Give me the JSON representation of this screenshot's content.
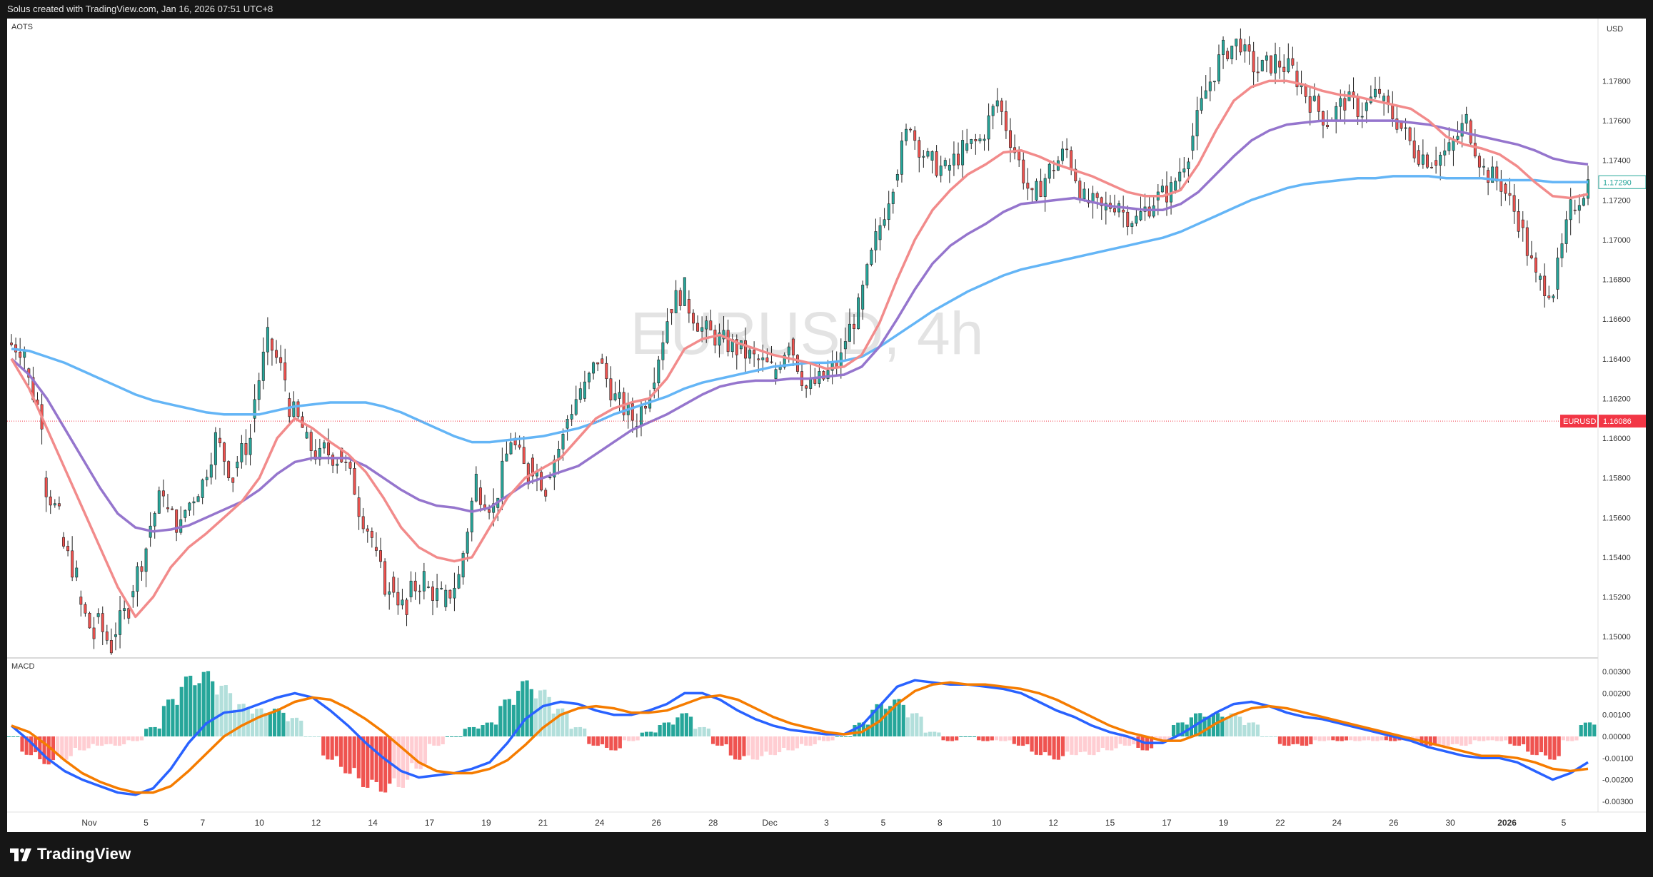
{
  "topbar": {
    "credit": "Solus created with TradingView.com, Jan 16, 2026 07:51 UTC+8"
  },
  "brand": {
    "logo_text": "TradingView"
  },
  "pane_labels": {
    "main": "AOTS",
    "macd": "MACD"
  },
  "watermark": {
    "text": "EURUSD, 4h"
  },
  "colors": {
    "up": "#26a69a",
    "down": "#ef5350",
    "ma_fast": "#f28b8b",
    "ma_mid": "#9575cd",
    "ma_slow": "#64b5f6",
    "macd_line": "#2962ff",
    "signal_line": "#f57c00",
    "last_price_tag": "#f23645",
    "current_tag": "#26a69a"
  },
  "price_axis": {
    "currency": "USD",
    "ticks": [
      "1.17800",
      "1.17600",
      "1.17400",
      "1.17200",
      "1.17000",
      "1.16800",
      "1.16600",
      "1.16400",
      "1.16200",
      "1.16000",
      "1.15800",
      "1.15600",
      "1.15400",
      "1.15200",
      "1.15000"
    ],
    "current_price": "1.17290",
    "last_price_symbol": "EURUSD",
    "last_price_value": "1.16086"
  },
  "macd_axis": {
    "ticks": [
      "0.00300",
      "0.00200",
      "0.00100",
      "0.00000",
      "-0.00100",
      "-0.00200",
      "-0.00300"
    ]
  },
  "time_axis": {
    "labels": [
      {
        "t": "Nov",
        "bold": false
      },
      {
        "t": "5",
        "bold": false
      },
      {
        "t": "7",
        "bold": false
      },
      {
        "t": "10",
        "bold": false
      },
      {
        "t": "12",
        "bold": false
      },
      {
        "t": "14",
        "bold": false
      },
      {
        "t": "17",
        "bold": false
      },
      {
        "t": "19",
        "bold": false
      },
      {
        "t": "21",
        "bold": false
      },
      {
        "t": "24",
        "bold": false
      },
      {
        "t": "26",
        "bold": false
      },
      {
        "t": "28",
        "bold": false
      },
      {
        "t": "Dec",
        "bold": false
      },
      {
        "t": "3",
        "bold": false
      },
      {
        "t": "5",
        "bold": false
      },
      {
        "t": "8",
        "bold": false
      },
      {
        "t": "10",
        "bold": false
      },
      {
        "t": "12",
        "bold": false
      },
      {
        "t": "15",
        "bold": false
      },
      {
        "t": "17",
        "bold": false
      },
      {
        "t": "19",
        "bold": false
      },
      {
        "t": "22",
        "bold": false
      },
      {
        "t": "24",
        "bold": false
      },
      {
        "t": "26",
        "bold": false
      },
      {
        "t": "30",
        "bold": false
      },
      {
        "t": "2026",
        "bold": true
      },
      {
        "t": "5",
        "bold": false
      }
    ]
  },
  "chart_data": {
    "type": "candlestick",
    "symbol": "EURUSD",
    "ylim": [
      1.149,
      1.181
    ],
    "macd_ylim": [
      -0.0035,
      0.0035
    ],
    "anchors": [
      {
        "o": 1.1648,
        "c": 1.1645
      },
      {
        "o": 1.1635,
        "c": 1.161
      },
      {
        "o": 1.158,
        "c": 1.156
      },
      {
        "o": 1.155,
        "c": 1.153
      },
      {
        "o": 1.152,
        "c": 1.15
      },
      {
        "o": 1.151,
        "c": 1.1495
      },
      {
        "o": 1.15,
        "c": 1.1515
      },
      {
        "o": 1.152,
        "c": 1.1545
      },
      {
        "o": 1.155,
        "c": 1.1575
      },
      {
        "o": 1.1565,
        "c": 1.1555
      },
      {
        "o": 1.156,
        "c": 1.1575
      },
      {
        "o": 1.157,
        "c": 1.16
      },
      {
        "o": 1.16,
        "c": 1.158
      },
      {
        "o": 1.1585,
        "c": 1.16
      },
      {
        "o": 1.161,
        "c": 1.165
      },
      {
        "o": 1.165,
        "c": 1.163
      },
      {
        "o": 1.162,
        "c": 1.1605
      },
      {
        "o": 1.16,
        "c": 1.159
      },
      {
        "o": 1.1595,
        "c": 1.159
      },
      {
        "o": 1.1595,
        "c": 1.1575
      },
      {
        "o": 1.157,
        "c": 1.155
      },
      {
        "o": 1.1545,
        "c": 1.152
      },
      {
        "o": 1.153,
        "c": 1.151
      },
      {
        "o": 1.152,
        "c": 1.153
      },
      {
        "o": 1.1525,
        "c": 1.152
      },
      {
        "o": 1.1515,
        "c": 1.153
      },
      {
        "o": 1.153,
        "c": 1.158
      },
      {
        "o": 1.1575,
        "c": 1.1565
      },
      {
        "o": 1.1565,
        "c": 1.16
      },
      {
        "o": 1.16,
        "c": 1.158
      },
      {
        "o": 1.159,
        "c": 1.1575
      },
      {
        "o": 1.158,
        "c": 1.16
      },
      {
        "o": 1.1605,
        "c": 1.1625
      },
      {
        "o": 1.162,
        "c": 1.164
      },
      {
        "o": 1.164,
        "c": 1.162
      },
      {
        "o": 1.162,
        "c": 1.161
      },
      {
        "o": 1.1605,
        "c": 1.1625
      },
      {
        "o": 1.1625,
        "c": 1.166
      },
      {
        "o": 1.1665,
        "c": 1.1675
      },
      {
        "o": 1.167,
        "c": 1.1655
      },
      {
        "o": 1.1655,
        "c": 1.165
      },
      {
        "o": 1.165,
        "c": 1.1645
      },
      {
        "o": 1.1645,
        "c": 1.164
      },
      {
        "o": 1.164,
        "c": 1.1635
      },
      {
        "o": 1.163,
        "c": 1.165
      },
      {
        "o": 1.165,
        "c": 1.1625
      },
      {
        "o": 1.1625,
        "c": 1.163
      },
      {
        "o": 1.163,
        "c": 1.164
      },
      {
        "o": 1.1645,
        "c": 1.1665
      },
      {
        "o": 1.1665,
        "c": 1.17
      },
      {
        "o": 1.17,
        "c": 1.173
      },
      {
        "o": 1.173,
        "c": 1.176
      },
      {
        "o": 1.1755,
        "c": 1.174
      },
      {
        "o": 1.174,
        "c": 1.1735
      },
      {
        "o": 1.1735,
        "c": 1.1745
      },
      {
        "o": 1.1745,
        "c": 1.175
      },
      {
        "o": 1.175,
        "c": 1.177
      },
      {
        "o": 1.177,
        "c": 1.1745
      },
      {
        "o": 1.1745,
        "c": 1.172
      },
      {
        "o": 1.172,
        "c": 1.1735
      },
      {
        "o": 1.1735,
        "c": 1.1745
      },
      {
        "o": 1.1745,
        "c": 1.172
      },
      {
        "o": 1.172,
        "c": 1.1715
      },
      {
        "o": 1.1715,
        "c": 1.172
      },
      {
        "o": 1.1715,
        "c": 1.171
      },
      {
        "o": 1.171,
        "c": 1.172
      },
      {
        "o": 1.172,
        "c": 1.1725
      },
      {
        "o": 1.1725,
        "c": 1.1745
      },
      {
        "o": 1.1745,
        "c": 1.1775
      },
      {
        "o": 1.1775,
        "c": 1.1795
      },
      {
        "o": 1.1795,
        "c": 1.18
      },
      {
        "o": 1.1795,
        "c": 1.1785
      },
      {
        "o": 1.1785,
        "c": 1.179
      },
      {
        "o": 1.179,
        "c": 1.1785
      },
      {
        "o": 1.1785,
        "c": 1.177
      },
      {
        "o": 1.177,
        "c": 1.176
      },
      {
        "o": 1.176,
        "c": 1.177
      },
      {
        "o": 1.177,
        "c": 1.1765
      },
      {
        "o": 1.1765,
        "c": 1.1775
      },
      {
        "o": 1.177,
        "c": 1.176
      },
      {
        "o": 1.176,
        "c": 1.1745
      },
      {
        "o": 1.1745,
        "c": 1.174
      },
      {
        "o": 1.174,
        "c": 1.1745
      },
      {
        "o": 1.1745,
        "c": 1.176
      },
      {
        "o": 1.176,
        "c": 1.1735
      },
      {
        "o": 1.1735,
        "c": 1.1728
      },
      {
        "o": 1.1728,
        "c": 1.171
      },
      {
        "o": 1.171,
        "c": 1.168
      },
      {
        "o": 1.168,
        "c": 1.1675
      },
      {
        "o": 1.1675,
        "c": 1.1715
      },
      {
        "o": 1.1715,
        "c": 1.1729
      }
    ],
    "indicator_points": {
      "ma_fast": [
        1.164,
        1.1625,
        1.1605,
        1.1585,
        1.1565,
        1.1545,
        1.1525,
        1.151,
        1.152,
        1.1535,
        1.1545,
        1.1552,
        1.156,
        1.1568,
        1.158,
        1.16,
        1.161,
        1.1605,
        1.1598,
        1.1592,
        1.1583,
        1.157,
        1.1555,
        1.1545,
        1.154,
        1.1538,
        1.154,
        1.1555,
        1.157,
        1.158,
        1.1585,
        1.159,
        1.16,
        1.161,
        1.1615,
        1.1618,
        1.162,
        1.163,
        1.1645,
        1.165,
        1.1652,
        1.1648,
        1.1645,
        1.1642,
        1.164,
        1.1638,
        1.1635,
        1.1636,
        1.1642,
        1.1658,
        1.168,
        1.17,
        1.1715,
        1.1725,
        1.1733,
        1.1738,
        1.1744,
        1.1745,
        1.1742,
        1.1738,
        1.1735,
        1.1732,
        1.1728,
        1.1724,
        1.1722,
        1.1722,
        1.1725,
        1.1738,
        1.1755,
        1.177,
        1.1777,
        1.178,
        1.178,
        1.1778,
        1.1775,
        1.1773,
        1.1772,
        1.177,
        1.1768,
        1.1766,
        1.176,
        1.1752,
        1.1748,
        1.1746,
        1.1743,
        1.1737,
        1.1729,
        1.1722,
        1.1721,
        1.1723
      ],
      "ma_mid": [
        1.164,
        1.1632,
        1.162,
        1.1605,
        1.159,
        1.1575,
        1.1562,
        1.1555,
        1.1553,
        1.1554,
        1.1556,
        1.156,
        1.1564,
        1.1568,
        1.1574,
        1.1582,
        1.1588,
        1.159,
        1.159,
        1.159,
        1.1586,
        1.158,
        1.1574,
        1.1569,
        1.1566,
        1.1565,
        1.1563,
        1.1565,
        1.1571,
        1.1577,
        1.158,
        1.1583,
        1.1586,
        1.1592,
        1.1598,
        1.1604,
        1.1608,
        1.1612,
        1.1617,
        1.1622,
        1.1626,
        1.1628,
        1.1629,
        1.1629,
        1.163,
        1.163,
        1.1631,
        1.1632,
        1.1636,
        1.1646,
        1.166,
        1.1675,
        1.1688,
        1.1697,
        1.1703,
        1.1708,
        1.1714,
        1.1718,
        1.1719,
        1.172,
        1.1721,
        1.1719,
        1.1717,
        1.1716,
        1.1715,
        1.1715,
        1.1718,
        1.1724,
        1.1733,
        1.1742,
        1.175,
        1.1755,
        1.1758,
        1.1759,
        1.176,
        1.176,
        1.176,
        1.176,
        1.176,
        1.1759,
        1.1758,
        1.1756,
        1.1754,
        1.1752,
        1.175,
        1.1748,
        1.1745,
        1.1741,
        1.1739,
        1.1738
      ],
      "ma_slow": [
        1.1645,
        1.1644,
        1.1641,
        1.1638,
        1.1634,
        1.163,
        1.1626,
        1.1622,
        1.1619,
        1.1617,
        1.1615,
        1.1613,
        1.1612,
        1.1612,
        1.1612,
        1.1614,
        1.1616,
        1.1617,
        1.1618,
        1.1618,
        1.1618,
        1.1616,
        1.1613,
        1.1609,
        1.1605,
        1.1601,
        1.1598,
        1.1598,
        1.1599,
        1.16,
        1.1601,
        1.1603,
        1.1605,
        1.1608,
        1.1612,
        1.1615,
        1.1618,
        1.1621,
        1.1625,
        1.1628,
        1.163,
        1.1632,
        1.1634,
        1.1636,
        1.1637,
        1.1638,
        1.1638,
        1.1639,
        1.1641,
        1.1646,
        1.1652,
        1.1658,
        1.1664,
        1.1669,
        1.1674,
        1.1678,
        1.1682,
        1.1685,
        1.1687,
        1.1689,
        1.1691,
        1.1693,
        1.1695,
        1.1697,
        1.1699,
        1.1701,
        1.1704,
        1.1708,
        1.1712,
        1.1716,
        1.172,
        1.1723,
        1.1726,
        1.1728,
        1.1729,
        1.173,
        1.1731,
        1.1731,
        1.1732,
        1.1732,
        1.1732,
        1.1731,
        1.1731,
        1.1731,
        1.173,
        1.173,
        1.173,
        1.1729,
        1.1729,
        1.1729
      ],
      "macd": [
        0.0005,
        -0.0002,
        -0.001,
        -0.0016,
        -0.002,
        -0.0023,
        -0.0026,
        -0.0027,
        -0.0024,
        -0.0015,
        -0.0003,
        0.0006,
        0.0011,
        0.0012,
        0.0015,
        0.0018,
        0.002,
        0.0018,
        0.0012,
        0.0005,
        -0.0003,
        -0.001,
        -0.0016,
        -0.0019,
        -0.0018,
        -0.0017,
        -0.0015,
        -0.0012,
        -0.0003,
        0.0008,
        0.0014,
        0.0016,
        0.0015,
        0.0012,
        0.001,
        0.001,
        0.0012,
        0.0015,
        0.002,
        0.002,
        0.0017,
        0.0012,
        0.0008,
        0.0005,
        0.0003,
        0.0002,
        0.0001,
        0.0001,
        0.0005,
        0.0014,
        0.0023,
        0.0026,
        0.0025,
        0.0024,
        0.0024,
        0.0023,
        0.0022,
        0.002,
        0.0016,
        0.0012,
        0.0009,
        0.0005,
        0.0002,
        0.0,
        -0.0003,
        -0.0003,
        0.0001,
        0.0006,
        0.0011,
        0.0015,
        0.0016,
        0.0014,
        0.0011,
        0.0009,
        0.0008,
        0.0006,
        0.0004,
        0.0002,
        0.0,
        -0.0002,
        -0.0005,
        -0.0007,
        -0.0009,
        -0.001,
        -0.001,
        -0.0012,
        -0.0016,
        -0.002,
        -0.0017,
        -0.0012
      ],
      "signal": [
        0.0005,
        0.0002,
        -0.0004,
        -0.0011,
        -0.0017,
        -0.0021,
        -0.0024,
        -0.0026,
        -0.0026,
        -0.0023,
        -0.0016,
        -0.0008,
        0.0,
        0.0005,
        0.0009,
        0.0012,
        0.0016,
        0.0018,
        0.0017,
        0.0013,
        0.0008,
        0.0002,
        -0.0005,
        -0.0012,
        -0.0016,
        -0.0017,
        -0.0017,
        -0.0015,
        -0.0011,
        -0.0004,
        0.0004,
        0.001,
        0.0013,
        0.0014,
        0.0013,
        0.0011,
        0.0011,
        0.0012,
        0.0015,
        0.0018,
        0.0019,
        0.0017,
        0.0013,
        0.0009,
        0.0006,
        0.0004,
        0.0002,
        0.0001,
        0.0002,
        0.0007,
        0.0015,
        0.0021,
        0.0024,
        0.0025,
        0.0024,
        0.0024,
        0.0023,
        0.0022,
        0.002,
        0.0017,
        0.0013,
        0.0009,
        0.0005,
        0.0002,
        0.0,
        -0.0002,
        -0.0002,
        0.0001,
        0.0006,
        0.001,
        0.0013,
        0.0014,
        0.0013,
        0.0011,
        0.0009,
        0.0007,
        0.0005,
        0.0003,
        0.0001,
        -0.0001,
        -0.0003,
        -0.0005,
        -0.0007,
        -0.0009,
        -0.0009,
        -0.001,
        -0.0012,
        -0.0015,
        -0.0016,
        -0.0015
      ]
    }
  }
}
